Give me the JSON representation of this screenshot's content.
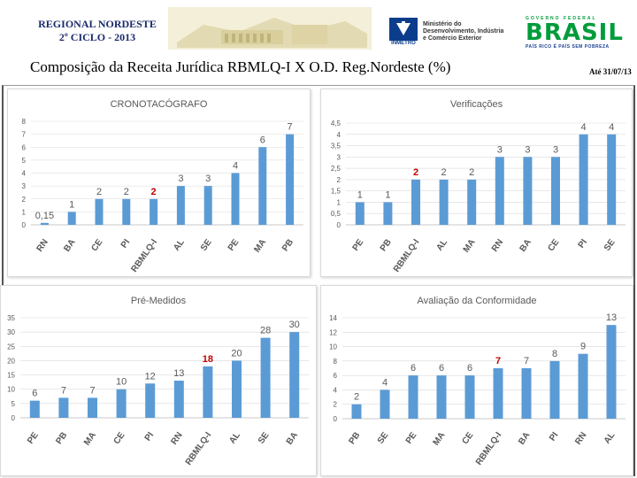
{
  "header": {
    "region": "REGIONAL NORDESTE",
    "cycle": "2º CICLO - 2013",
    "title": "Composição da Receita Jurídica RBMLQ-I  X O.D. Reg.Nordeste (%)",
    "date": "Até 31/07/13",
    "inmetro_label": "INMETRO",
    "ministry_line1": "Ministério do",
    "ministry_line2": "Desenvolvimento, Indústria",
    "ministry_line3": "e Comércio Exterior",
    "gov_label": "GOVERNO FEDERAL",
    "brasil_word": "BRASIL",
    "brasil_slogan": "PAÍS RICO É PAÍS SEM POBREZA"
  },
  "colors": {
    "bar": "#5b9bd5",
    "label": "#595959",
    "highlight": "#c00000",
    "grid": "#d9d9d9",
    "title": "#595959"
  },
  "chart_data": [
    {
      "type": "bar",
      "title": "CRONOTACÓGRAFO",
      "categories": [
        "RN",
        "BA",
        "CE",
        "PI",
        "RBMLQ-I",
        "AL",
        "SE",
        "PE",
        "MA",
        "PB"
      ],
      "values": [
        0.15,
        1,
        2,
        2,
        2,
        3,
        3,
        4,
        6,
        7
      ],
      "value_labels": [
        "0,15",
        "1",
        "2",
        "2",
        "2",
        "3",
        "3",
        "4",
        "6",
        "7"
      ],
      "yticks": [
        "0",
        "1",
        "2",
        "3",
        "4",
        "5",
        "6",
        "7",
        "8"
      ],
      "ylim": [
        0,
        8
      ],
      "highlight_index": 4
    },
    {
      "type": "bar",
      "title": "Verificações",
      "categories": [
        "PE",
        "PB",
        "RBMLQ-I",
        "AL",
        "MA",
        "RN",
        "BA",
        "CE",
        "PI",
        "SE"
      ],
      "values": [
        1,
        1,
        2,
        2,
        2,
        3,
        3,
        3,
        4,
        4
      ],
      "value_labels": [
        "1",
        "1",
        "2",
        "2",
        "2",
        "3",
        "3",
        "3",
        "4",
        "4"
      ],
      "yticks": [
        "0",
        "0,5",
        "1",
        "1,5",
        "2",
        "2,5",
        "3",
        "3,5",
        "4",
        "4,5"
      ],
      "ylim": [
        0,
        4.5
      ],
      "highlight_index": 2
    },
    {
      "type": "bar",
      "title": "Pré-Medidos",
      "categories": [
        "PE",
        "PB",
        "MA",
        "CE",
        "PI",
        "RN",
        "RBMLQ-I",
        "AL",
        "SE",
        "BA"
      ],
      "values": [
        6,
        7,
        7,
        10,
        12,
        13,
        18,
        20,
        28,
        30
      ],
      "value_labels": [
        "6",
        "7",
        "7",
        "10",
        "12",
        "13",
        "18",
        "20",
        "28",
        "30"
      ],
      "yticks": [
        "0",
        "5",
        "10",
        "15",
        "20",
        "25",
        "30",
        "35"
      ],
      "ylim": [
        0,
        35
      ],
      "highlight_index": 6
    },
    {
      "type": "bar",
      "title": "Avaliação da Conformidade",
      "categories": [
        "PB",
        "SE",
        "PE",
        "MA",
        "CE",
        "RBMLQ-I",
        "BA",
        "PI",
        "RN",
        "AL"
      ],
      "values": [
        2,
        4,
        6,
        6,
        6,
        7,
        7,
        8,
        9,
        13
      ],
      "value_labels": [
        "2",
        "4",
        "6",
        "6",
        "6",
        "7",
        "7",
        "8",
        "9",
        "13"
      ],
      "yticks": [
        "0",
        "2",
        "4",
        "6",
        "8",
        "10",
        "12",
        "14"
      ],
      "ylim": [
        0,
        14
      ],
      "highlight_index": 5
    }
  ]
}
